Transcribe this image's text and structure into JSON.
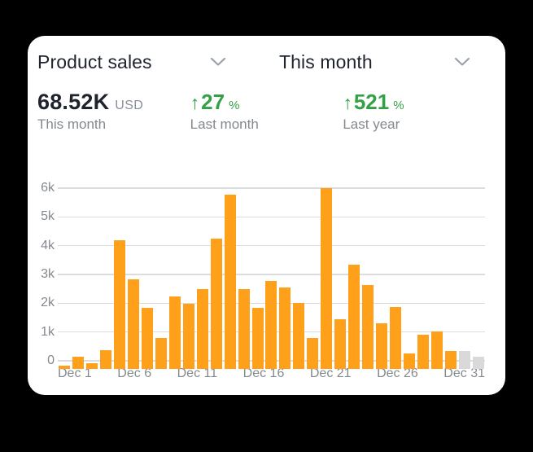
{
  "header": {
    "metric_dropdown": {
      "label": "Product sales"
    },
    "period_dropdown": {
      "label": "This month"
    }
  },
  "kpis": {
    "primary": {
      "value": "68.52K",
      "unit": "USD",
      "caption": "This month"
    },
    "vs_last_month": {
      "arrow": "↑",
      "value": "27",
      "unit": "%",
      "caption": "Last month"
    },
    "vs_last_year": {
      "arrow": "↑",
      "value": "521",
      "unit": "%",
      "caption": "Last year"
    }
  },
  "colors": {
    "bar": "#FFA01A",
    "muted_bar": "#D9D9D9",
    "green": "#34A048",
    "dark_text": "#1E232E",
    "gray_text": "#85898F",
    "card_bg": "#FFFFFF",
    "page_bg": "#000000"
  },
  "chart_data": {
    "type": "bar",
    "title": "",
    "xlabel": "",
    "ylabel": "",
    "ylim": [
      0,
      6000
    ],
    "grid": true,
    "categories": [
      "Dec 1",
      "Dec 2",
      "Dec 3",
      "Dec 4",
      "Dec 5",
      "Dec 6",
      "Dec 7",
      "Dec 8",
      "Dec 9",
      "Dec 10",
      "Dec 11",
      "Dec 12",
      "Dec 13",
      "Dec 14",
      "Dec 15",
      "Dec 16",
      "Dec 17",
      "Dec 18",
      "Dec 19",
      "Dec 20",
      "Dec 21",
      "Dec 22",
      "Dec 23",
      "Dec 24",
      "Dec 25",
      "Dec 26",
      "Dec 27",
      "Dec 28",
      "Dec 29",
      "Dec 30",
      "Dec 31"
    ],
    "values": [
      100,
      400,
      180,
      650,
      4450,
      3100,
      2120,
      1070,
      2520,
      2250,
      2760,
      4520,
      6050,
      2760,
      2110,
      3040,
      2810,
      2290,
      1050,
      6270,
      1720,
      3610,
      2900,
      1580,
      2130,
      520,
      1180,
      1300,
      600,
      620,
      400
    ],
    "gray_from_index": 29,
    "yticks": [
      "0",
      "1k",
      "2k",
      "3k",
      "4k",
      "5k",
      "6k"
    ],
    "xtick_indices": [
      0,
      5,
      10,
      15,
      20,
      25,
      30
    ]
  }
}
